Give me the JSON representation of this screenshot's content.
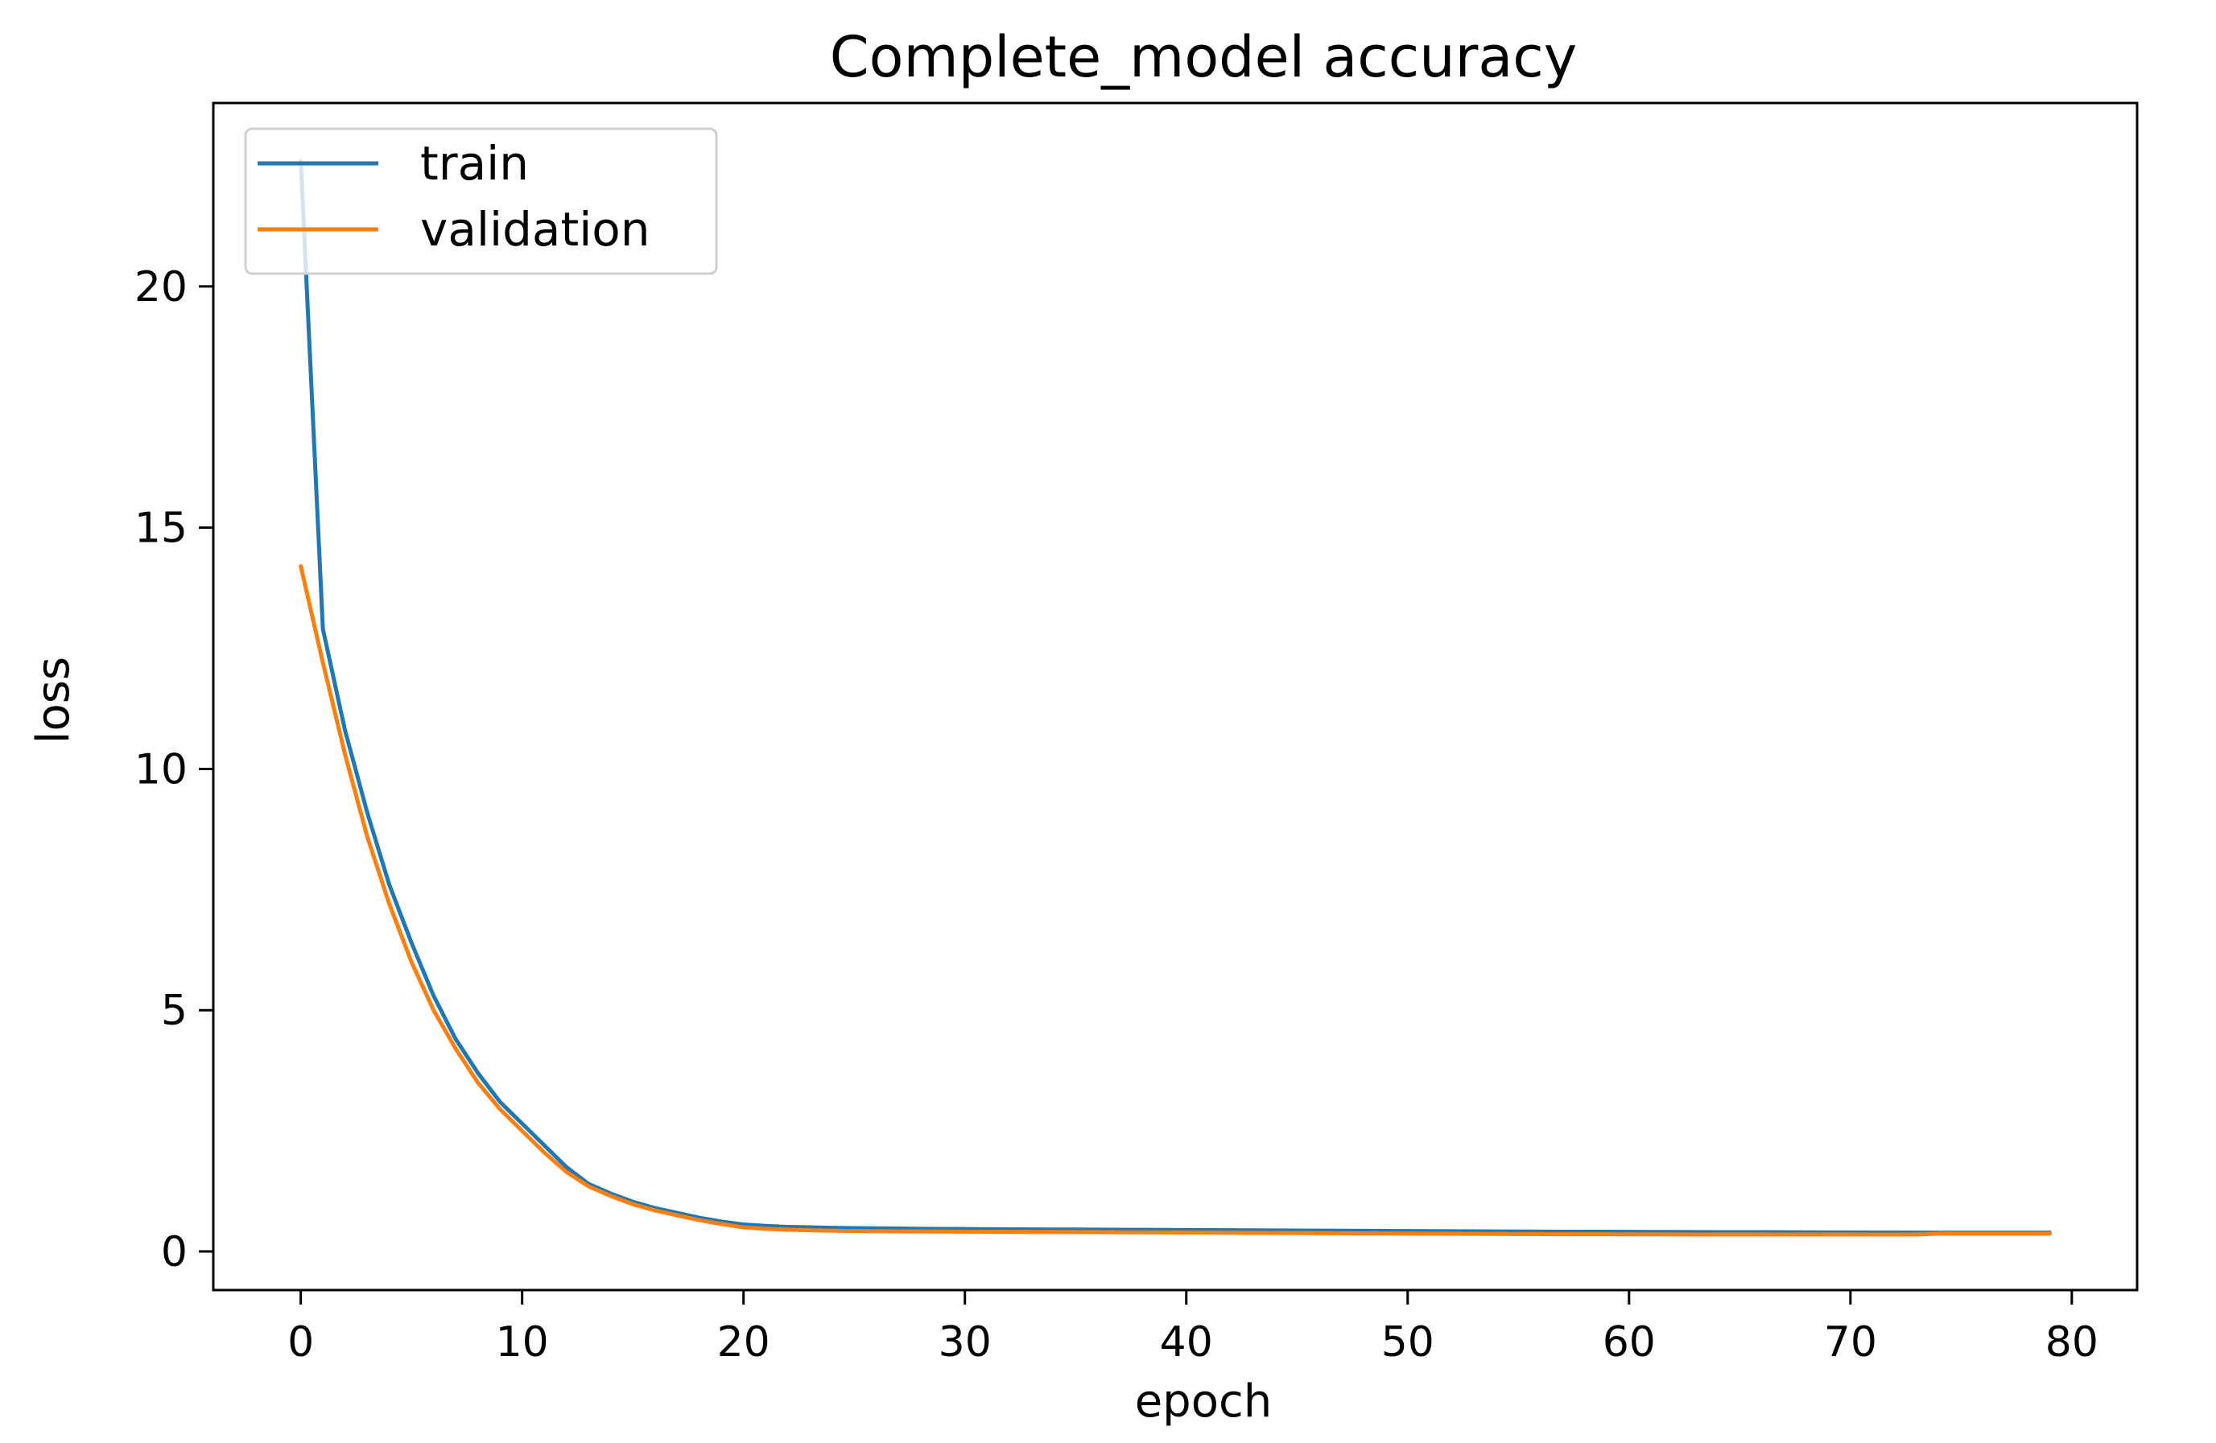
{
  "chart_data": {
    "type": "line",
    "title": "Complete_model accuracy",
    "xlabel": "epoch",
    "ylabel": "loss",
    "xlim": [
      -3.95,
      82.95
    ],
    "ylim": [
      -0.8,
      23.8
    ],
    "x_ticks": [
      0,
      10,
      20,
      30,
      40,
      50,
      60,
      70,
      80
    ],
    "y_ticks": [
      0,
      5,
      10,
      15,
      20
    ],
    "x_tick_labels": [
      "0",
      "10",
      "20",
      "30",
      "40",
      "50",
      "60",
      "70",
      "80"
    ],
    "y_tick_labels": [
      "0",
      "5",
      "10",
      "15",
      "20"
    ],
    "grid": false,
    "legend_position": "top-left",
    "series": [
      {
        "name": "train",
        "color": "#1f77b4",
        "x": [
          0,
          1,
          2,
          3,
          4,
          5,
          6,
          7,
          8,
          9,
          10,
          11,
          12,
          13,
          14,
          15,
          16,
          17,
          18,
          19,
          20,
          21,
          22,
          23,
          24,
          25,
          26,
          27,
          28,
          29,
          30,
          31,
          32,
          33,
          34,
          35,
          36,
          37,
          38,
          39,
          40,
          41,
          42,
          43,
          44,
          45,
          46,
          47,
          48,
          49,
          50,
          51,
          52,
          53,
          54,
          55,
          56,
          57,
          58,
          59,
          60,
          61,
          62,
          63,
          64,
          65,
          66,
          67,
          68,
          69,
          70,
          71,
          72,
          73,
          74,
          75,
          76,
          77,
          78,
          79
        ],
        "y": [
          22.6,
          12.9,
          10.8,
          9.1,
          7.6,
          6.4,
          5.3,
          4.4,
          3.7,
          3.1,
          2.65,
          2.2,
          1.75,
          1.4,
          1.2,
          1.03,
          0.9,
          0.8,
          0.7,
          0.62,
          0.56,
          0.53,
          0.51,
          0.5,
          0.49,
          0.485,
          0.48,
          0.475,
          0.47,
          0.468,
          0.465,
          0.462,
          0.46,
          0.458,
          0.456,
          0.454,
          0.452,
          0.45,
          0.448,
          0.446,
          0.444,
          0.442,
          0.44,
          0.438,
          0.436,
          0.434,
          0.432,
          0.43,
          0.428,
          0.426,
          0.424,
          0.422,
          0.42,
          0.418,
          0.416,
          0.414,
          0.412,
          0.41,
          0.41,
          0.41,
          0.408,
          0.406,
          0.404,
          0.402,
          0.4,
          0.4,
          0.4,
          0.398,
          0.396,
          0.395,
          0.394,
          0.393,
          0.392,
          0.391,
          0.39,
          0.39,
          0.39,
          0.39,
          0.39,
          0.39
        ]
      },
      {
        "name": "validation",
        "color": "#ff7f0e",
        "x": [
          0,
          1,
          2,
          3,
          4,
          5,
          6,
          7,
          8,
          9,
          10,
          11,
          12,
          13,
          14,
          15,
          16,
          17,
          18,
          19,
          20,
          21,
          22,
          23,
          24,
          25,
          26,
          27,
          28,
          29,
          30,
          31,
          32,
          33,
          34,
          35,
          36,
          37,
          38,
          39,
          40,
          41,
          42,
          43,
          44,
          45,
          46,
          47,
          48,
          49,
          50,
          51,
          52,
          53,
          54,
          55,
          56,
          57,
          58,
          59,
          60,
          61,
          62,
          63,
          64,
          65,
          66,
          67,
          68,
          69,
          70,
          71,
          72,
          73,
          74,
          75,
          76,
          77,
          78,
          79
        ],
        "y": [
          14.2,
          12.2,
          10.3,
          8.6,
          7.2,
          6.0,
          5.0,
          4.2,
          3.5,
          2.95,
          2.5,
          2.05,
          1.65,
          1.35,
          1.15,
          0.98,
          0.85,
          0.75,
          0.65,
          0.57,
          0.5,
          0.47,
          0.45,
          0.44,
          0.43,
          0.425,
          0.42,
          0.418,
          0.416,
          0.414,
          0.412,
          0.41,
          0.408,
          0.406,
          0.404,
          0.402,
          0.4,
          0.398,
          0.396,
          0.394,
          0.392,
          0.39,
          0.388,
          0.386,
          0.384,
          0.382,
          0.38,
          0.378,
          0.376,
          0.374,
          0.372,
          0.37,
          0.368,
          0.366,
          0.364,
          0.362,
          0.36,
          0.358,
          0.358,
          0.358,
          0.356,
          0.354,
          0.352,
          0.35,
          0.35,
          0.35,
          0.35,
          0.35,
          0.35,
          0.35,
          0.35,
          0.35,
          0.35,
          0.35,
          0.37,
          0.37,
          0.37,
          0.37,
          0.37,
          0.37
        ]
      }
    ]
  }
}
